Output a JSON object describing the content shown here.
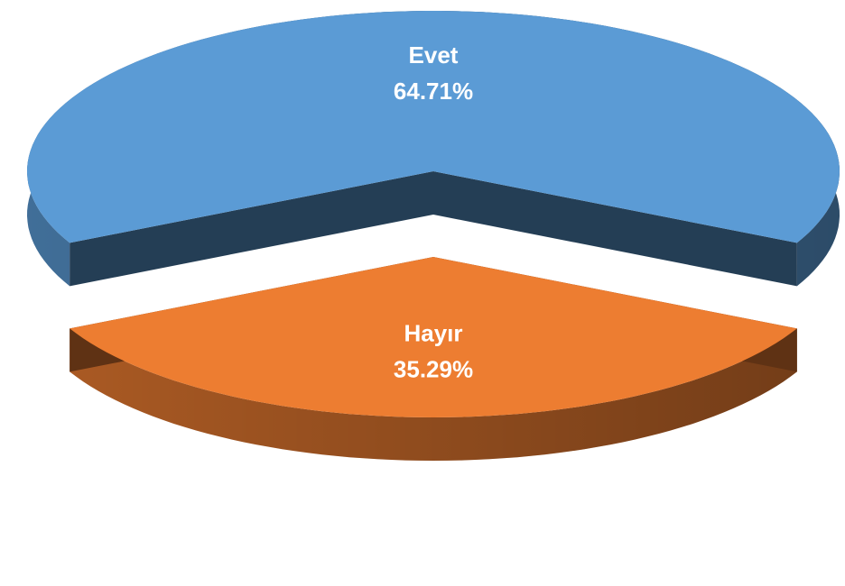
{
  "chart_data": {
    "type": "pie",
    "categories": [
      "Evet",
      "Hayır"
    ],
    "values": [
      64.71,
      35.29
    ],
    "value_labels": [
      "64.71%",
      "35.29%"
    ],
    "colors": [
      "#5b9bd5",
      "#ed7d31"
    ],
    "three_d": true
  }
}
